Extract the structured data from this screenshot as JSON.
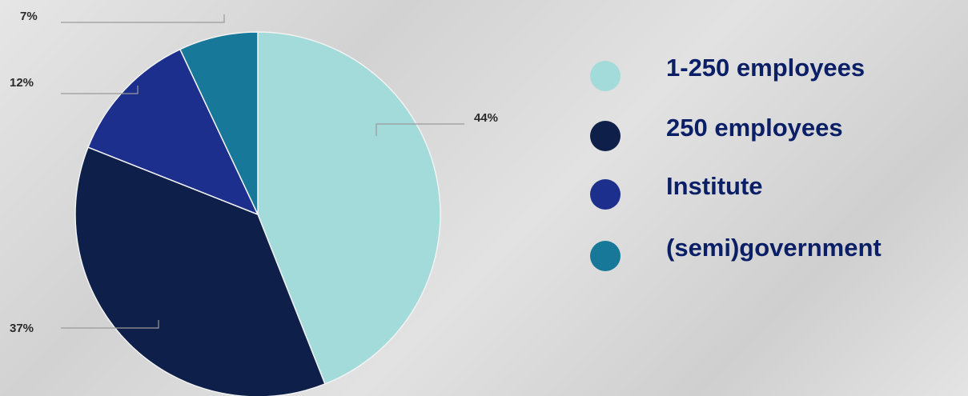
{
  "chart_data": {
    "type": "pie",
    "legend_placement": "right",
    "slices": [
      {
        "label": "1-250 employees",
        "value": 44,
        "display": "44%",
        "color": "#a2dbd9"
      },
      {
        "label": "250 employees",
        "value": 37,
        "display": "37%",
        "color": "#0e1f4a"
      },
      {
        "label": "Institute",
        "value": 12,
        "display": "12%",
        "color": "#1c2f8c"
      },
      {
        "label": "(semi)government",
        "value": 7,
        "display": "7%",
        "color": "#17789a"
      }
    ]
  }
}
